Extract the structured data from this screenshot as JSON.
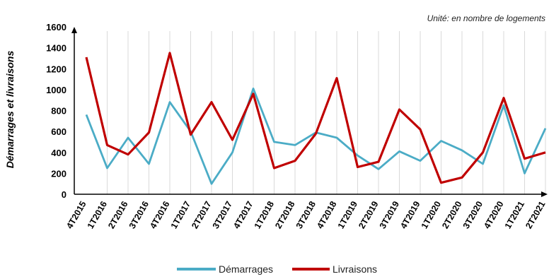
{
  "unit_note": "Unité: en nombre de logements",
  "chart_data": {
    "type": "line",
    "ylabel": "Démarrages et livraisons",
    "xlabel": "",
    "ylim": [
      0,
      1600
    ],
    "yticks": [
      0,
      200,
      400,
      600,
      800,
      1000,
      1200,
      1400,
      1600
    ],
    "grid": "vertical",
    "legend": "bottom",
    "categories": [
      "4T2015",
      "1T2016",
      "2T2016",
      "3T2016",
      "4T2016",
      "1T2017",
      "2T2017",
      "3T2017",
      "4T2017",
      "1T2018",
      "2T2018",
      "3T2018",
      "4T2018",
      "1T2019",
      "2T2019",
      "3T2019",
      "4T2019",
      "1T2020",
      "2T2020",
      "3T2020",
      "4T2020",
      "1T2021",
      "2T2021"
    ],
    "series": [
      {
        "name": "Démarrages",
        "color": "#4bacc6",
        "values": [
          760,
          250,
          540,
          290,
          880,
          600,
          100,
          400,
          1010,
          500,
          470,
          590,
          540,
          370,
          240,
          410,
          320,
          510,
          420,
          290,
          850,
          200,
          630
        ]
      },
      {
        "name": "Livraisons",
        "color": "#c00000",
        "values": [
          1310,
          470,
          380,
          590,
          1350,
          570,
          880,
          520,
          960,
          250,
          320,
          580,
          1110,
          260,
          310,
          810,
          620,
          110,
          160,
          400,
          920,
          340,
          400
        ]
      }
    ]
  }
}
